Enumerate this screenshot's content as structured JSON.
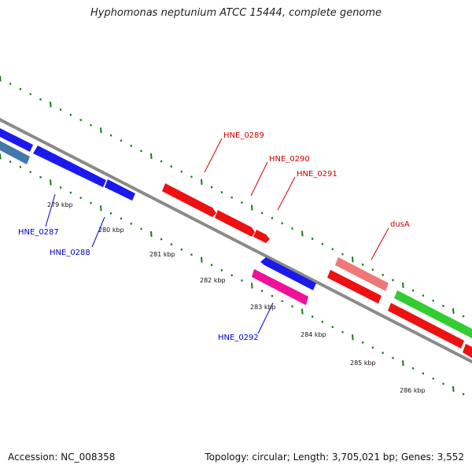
{
  "title": "Hyphomonas neptunium ATCC 15444, complete genome",
  "footer": {
    "accession": "Accession: NC_008358",
    "topology": "Topology: circular; Length: 3,705,021 bp; Genes: 3,552"
  },
  "colors": {
    "backbone": "#8a8a8a",
    "tick": "#1a7a1a",
    "label_forward": "#cc0000",
    "label_reverse": "#0000cc",
    "gene_red": "#ee1111",
    "gene_blue": "#1a1aee",
    "gene_steel": "#4477aa",
    "gene_pink": "#ee1199",
    "gene_salmon": "#ee7777",
    "gene_green": "#33cc33"
  },
  "kbp_labels": [
    "279 kbp",
    "280 kbp",
    "281 kbp",
    "282 kbp",
    "283 kbp",
    "284 kbp",
    "285 kbp",
    "286 kbp"
  ],
  "gene_labels": {
    "forward": [
      "HNE_0289",
      "HNE_0290",
      "HNE_0291",
      "dusA"
    ],
    "reverse": [
      "HNE_0287",
      "HNE_0288",
      "HNE_0292"
    ]
  }
}
